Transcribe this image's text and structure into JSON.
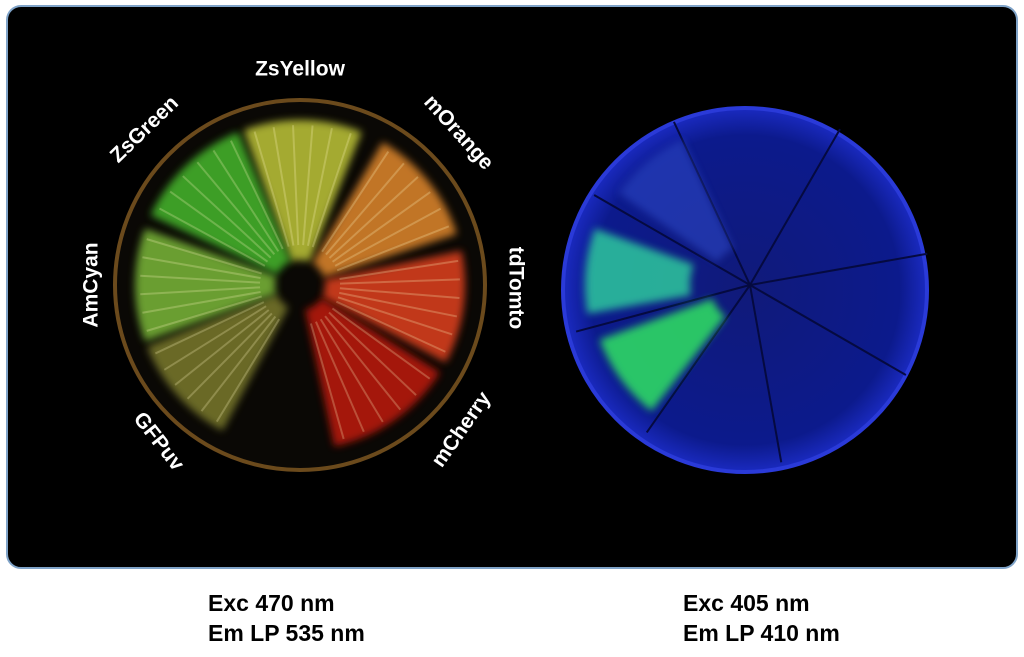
{
  "plate_labels": [
    "ZsYellow",
    "mOrange",
    "tdTomto",
    "mCherry",
    "GFPuv",
    "AmCyan",
    "ZsGreen"
  ],
  "captions": [
    {
      "lines": [
        "Exc 470 nm",
        "Em LP 535 nm"
      ]
    },
    {
      "lines": [
        "Exc 405 nm",
        "Em LP 410 nm"
      ]
    }
  ]
}
